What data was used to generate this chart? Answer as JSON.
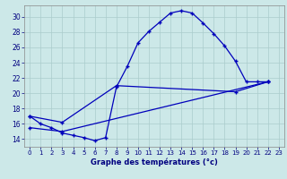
{
  "title": "Graphe des températures (°c)",
  "background_color": "#cce8e8",
  "grid_color": "#aacccc",
  "line_color": "#0000bb",
  "xlim": [
    -0.5,
    23.5
  ],
  "ylim": [
    13.0,
    31.5
  ],
  "xticks": [
    0,
    1,
    2,
    3,
    4,
    5,
    6,
    7,
    8,
    9,
    10,
    11,
    12,
    13,
    14,
    15,
    16,
    17,
    18,
    19,
    20,
    21,
    22,
    23
  ],
  "yticks": [
    14,
    16,
    18,
    20,
    22,
    24,
    26,
    28,
    30
  ],
  "line1_x": [
    0,
    1,
    2,
    3,
    4,
    5,
    6,
    7,
    8,
    9,
    10,
    11,
    12,
    13,
    14,
    15,
    16,
    17,
    18,
    19,
    20,
    21,
    22
  ],
  "line1_y": [
    17.0,
    16.0,
    15.5,
    14.8,
    14.5,
    14.2,
    13.8,
    14.2,
    20.8,
    23.5,
    26.6,
    28.1,
    29.3,
    30.5,
    30.8,
    30.5,
    29.2,
    27.8,
    26.2,
    24.2,
    21.5,
    21.5,
    21.5
  ],
  "line2_x": [
    0,
    3,
    8,
    19,
    22
  ],
  "line2_y": [
    17.0,
    16.2,
    21.0,
    20.2,
    21.5
  ],
  "line3_x": [
    0,
    3,
    22
  ],
  "line3_y": [
    15.5,
    15.0,
    21.5
  ]
}
